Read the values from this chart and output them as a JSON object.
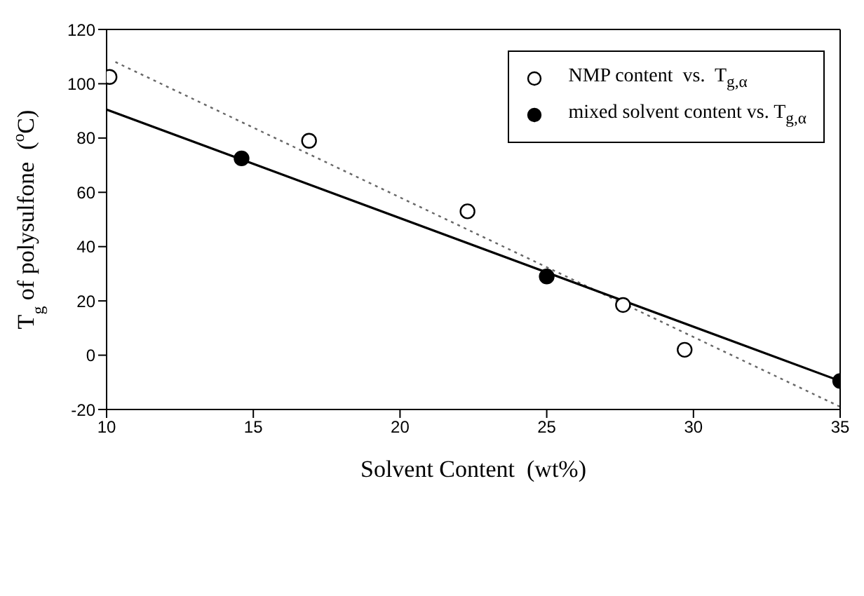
{
  "chart_data": {
    "type": "scatter",
    "xlabel": "Solvent Content  (wt%)",
    "ylabel": "T$_{g}$ of polysulfone  ($^{o}$C)",
    "xlim": [
      10,
      35
    ],
    "xticks": [
      10,
      15,
      20,
      25,
      30,
      35
    ],
    "ylim": [
      -20,
      120
    ],
    "yticks": [
      -20,
      0,
      20,
      40,
      60,
      80,
      100,
      120
    ],
    "legend": "top right",
    "marker": "circle",
    "series": [
      {
        "name": "NMP content  vs.  T$_{g,α}$",
        "color": "#ffffff",
        "x": [
          10.1,
          16.9,
          22.3,
          27.6,
          29.7
        ],
        "values": [
          102.5,
          79,
          53,
          18.5,
          2
        ]
      },
      {
        "name": "mixed solvent content vs. T$_{g,α}$",
        "color": "#000000",
        "x": [
          14.6,
          25,
          35
        ],
        "values": [
          72.5,
          29,
          -9.5
        ]
      },
      {
        "type": "line",
        "color": "#666666",
        "line_style": "dotted",
        "marker": "none",
        "x": [
          10.3,
          35
        ],
        "values": [
          108,
          -19
        ]
      },
      {
        "type": "line",
        "color": "#000000",
        "line_style": "solid",
        "marker": "none",
        "x": [
          10,
          35
        ],
        "values": [
          90.5,
          -9.5
        ]
      }
    ]
  }
}
